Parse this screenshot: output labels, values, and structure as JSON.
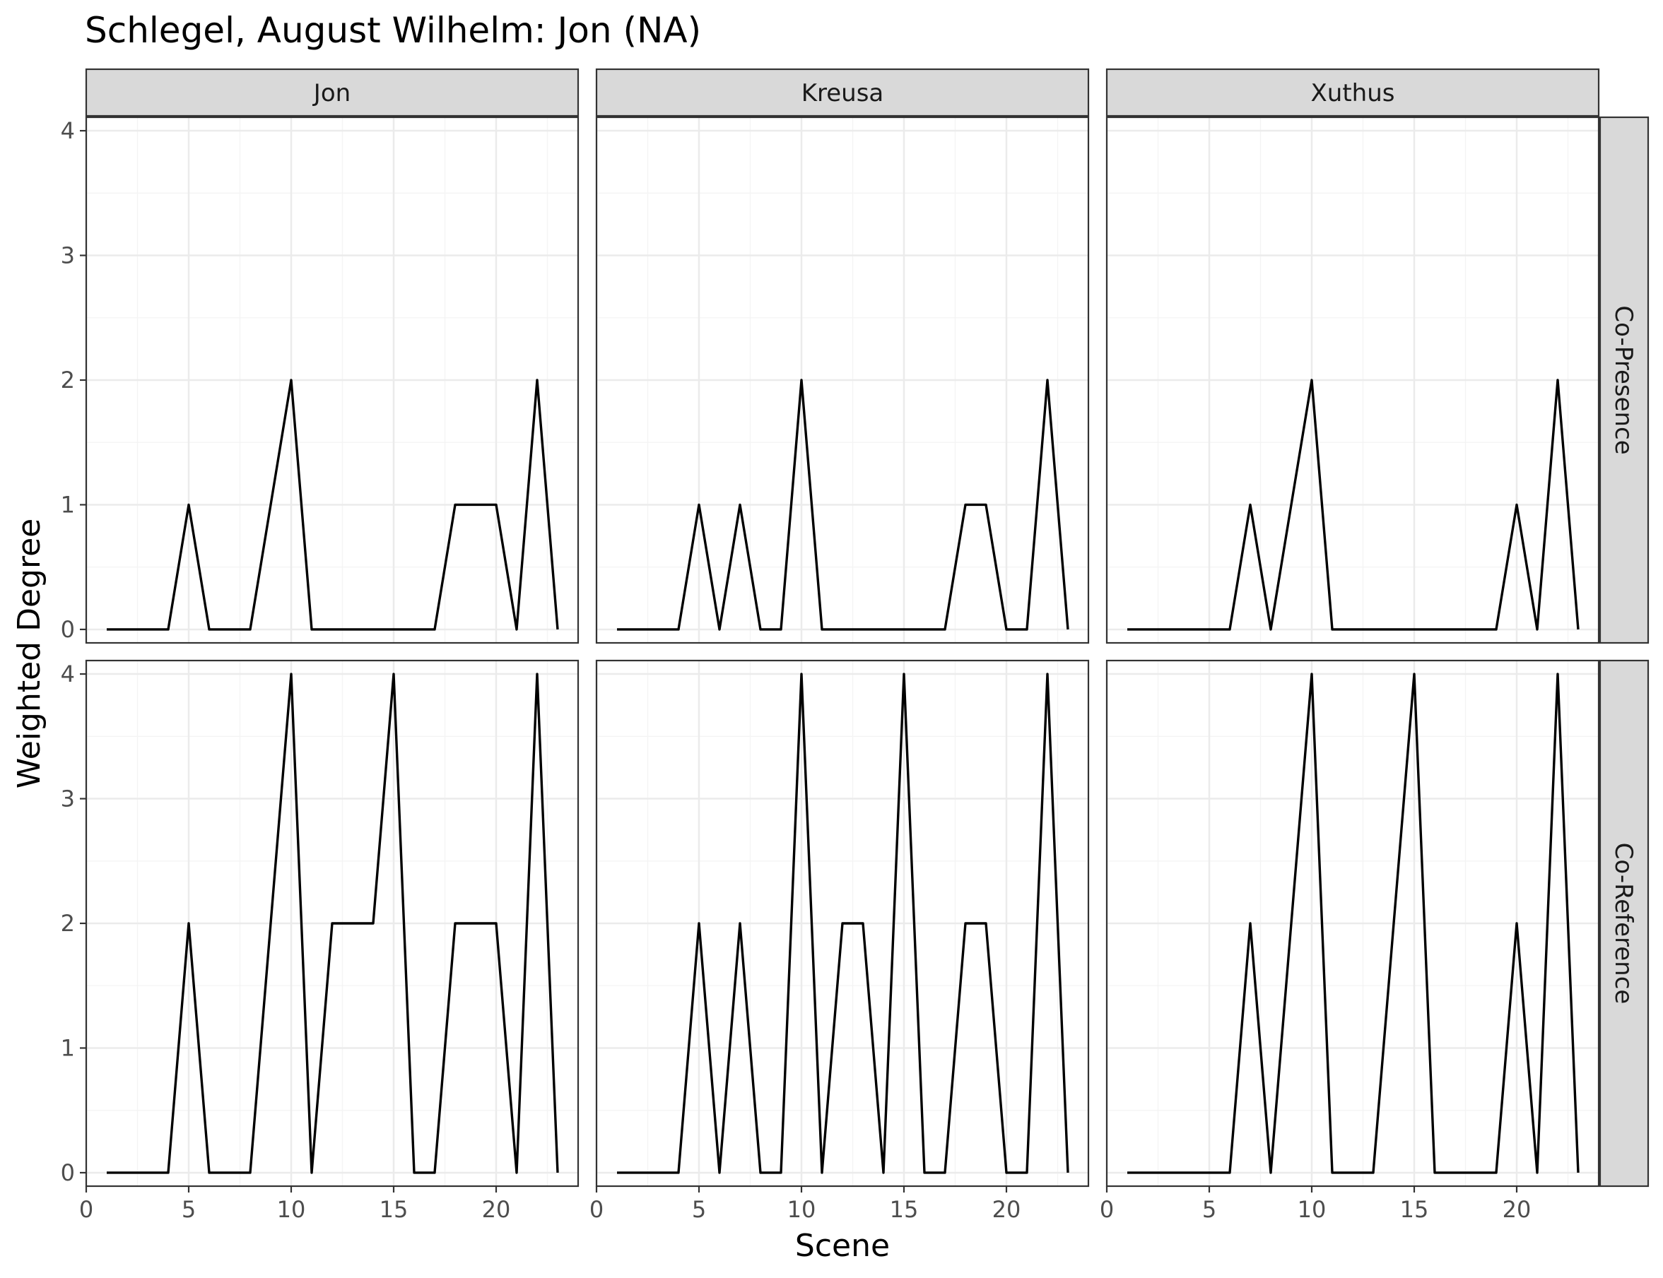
{
  "chart_data": {
    "type": "line",
    "title": "Schlegel, August Wilhelm: Jon (NA)",
    "xlabel": "Scene",
    "ylabel": "Weighted Degree",
    "xlim": [
      0,
      24
    ],
    "ylim": [
      0,
      4
    ],
    "x_ticks": [
      0,
      5,
      10,
      15,
      20
    ],
    "y_ticks": [
      0,
      1,
      2,
      3,
      4
    ],
    "grid": true,
    "column_facets": [
      "Jon",
      "Kreusa",
      "Xuthus"
    ],
    "row_facets": [
      "Co-Presence",
      "Co-Reference"
    ],
    "x": [
      1,
      2,
      3,
      4,
      5,
      6,
      7,
      8,
      9,
      10,
      11,
      12,
      13,
      14,
      15,
      16,
      17,
      18,
      19,
      20,
      21,
      22,
      23
    ],
    "panels": [
      {
        "column": "Jon",
        "row": "Co-Presence",
        "values": [
          0,
          0,
          0,
          0,
          1,
          0,
          0,
          0,
          1,
          2,
          0,
          0,
          0,
          0,
          0,
          0,
          0,
          1,
          1,
          1,
          0,
          2,
          0
        ]
      },
      {
        "column": "Kreusa",
        "row": "Co-Presence",
        "values": [
          0,
          0,
          0,
          0,
          1,
          0,
          1,
          0,
          0,
          2,
          0,
          0,
          0,
          0,
          0,
          0,
          0,
          1,
          1,
          0,
          0,
          2,
          0
        ]
      },
      {
        "column": "Xuthus",
        "row": "Co-Presence",
        "values": [
          0,
          0,
          0,
          0,
          0,
          0,
          1,
          0,
          1,
          2,
          0,
          0,
          0,
          0,
          0,
          0,
          0,
          0,
          0,
          1,
          0,
          2,
          0
        ]
      },
      {
        "column": "Jon",
        "row": "Co-Reference",
        "values": [
          0,
          0,
          0,
          0,
          2,
          0,
          0,
          0,
          2,
          4,
          0,
          2,
          2,
          2,
          4,
          0,
          0,
          2,
          2,
          2,
          0,
          4,
          0
        ]
      },
      {
        "column": "Kreusa",
        "row": "Co-Reference",
        "values": [
          0,
          0,
          0,
          0,
          2,
          0,
          2,
          0,
          0,
          4,
          0,
          2,
          2,
          0,
          4,
          0,
          0,
          2,
          2,
          0,
          0,
          4,
          0
        ]
      },
      {
        "column": "Xuthus",
        "row": "Co-Reference",
        "values": [
          0,
          0,
          0,
          0,
          0,
          0,
          2,
          0,
          2,
          4,
          0,
          0,
          0,
          2,
          4,
          0,
          0,
          0,
          0,
          2,
          0,
          4,
          0
        ]
      }
    ]
  }
}
